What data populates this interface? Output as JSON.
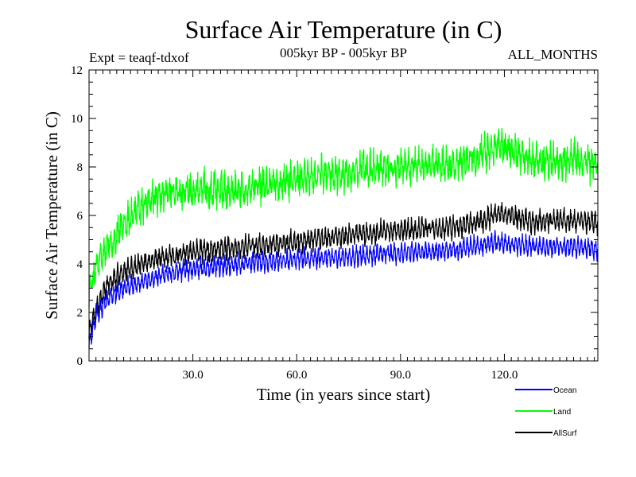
{
  "chart_data": {
    "type": "line",
    "title": "Surface Air Temperature (in C)",
    "subtitle": "005kyr BP - 005kyr BP",
    "experiment": "Expt = teaqf-tdxof",
    "period": "ALL_MONTHS",
    "xlabel": "Time (in years since start)",
    "ylabel": "Surface Air Temperature (in C)",
    "xlim": [
      0,
      147
    ],
    "ylim": [
      0,
      12
    ],
    "x_ticks": [
      30,
      60,
      90,
      120
    ],
    "x_tick_labels": [
      "30.0",
      "60.0",
      "90.0",
      "120.0"
    ],
    "y_ticks": [
      0,
      2,
      4,
      6,
      8,
      10,
      12
    ],
    "y_tick_labels": [
      "0",
      "2",
      "4",
      "6",
      "8",
      "10",
      "12"
    ],
    "x_step": 0.0833,
    "series": [
      {
        "name": "Ocean",
        "color": "#0000ff",
        "trend": [
          [
            0,
            0.6
          ],
          [
            2,
            1.8
          ],
          [
            5,
            2.5
          ],
          [
            10,
            3.0
          ],
          [
            20,
            3.5
          ],
          [
            30,
            3.8
          ],
          [
            45,
            4.0
          ],
          [
            60,
            4.2
          ],
          [
            75,
            4.3
          ],
          [
            90,
            4.45
          ],
          [
            105,
            4.55
          ],
          [
            115,
            4.8
          ],
          [
            118,
            4.9
          ],
          [
            130,
            4.7
          ],
          [
            140,
            4.7
          ],
          [
            147,
            4.6
          ]
        ],
        "seasonal_amplitude": 0.28,
        "noise_amplitude": 0.17,
        "x_range": [
          0,
          147
        ]
      },
      {
        "name": "Land",
        "color": "#00ff00",
        "trend": [
          [
            0,
            2.8
          ],
          [
            2,
            3.8
          ],
          [
            5,
            4.6
          ],
          [
            10,
            5.6
          ],
          [
            15,
            6.4
          ],
          [
            20,
            6.8
          ],
          [
            30,
            7.0
          ],
          [
            45,
            7.1
          ],
          [
            60,
            7.5
          ],
          [
            75,
            7.8
          ],
          [
            90,
            8.0
          ],
          [
            105,
            8.1
          ],
          [
            115,
            8.6
          ],
          [
            118,
            8.9
          ],
          [
            130,
            8.2
          ],
          [
            140,
            8.3
          ],
          [
            147,
            8.1
          ]
        ],
        "seasonal_amplitude": 0.38,
        "noise_amplitude": 0.42,
        "x_range": [
          0,
          147
        ]
      },
      {
        "name": "AllSurf",
        "color": "#000000",
        "trend": [
          [
            0,
            1.1
          ],
          [
            2,
            2.2
          ],
          [
            5,
            3.1
          ],
          [
            10,
            3.7
          ],
          [
            20,
            4.2
          ],
          [
            30,
            4.5
          ],
          [
            45,
            4.7
          ],
          [
            60,
            4.9
          ],
          [
            75,
            5.2
          ],
          [
            90,
            5.4
          ],
          [
            105,
            5.5
          ],
          [
            115,
            5.8
          ],
          [
            118,
            6.1
          ],
          [
            130,
            5.7
          ],
          [
            140,
            5.8
          ],
          [
            147,
            5.7
          ]
        ],
        "seasonal_amplitude": 0.3,
        "noise_amplitude": 0.2,
        "x_range": [
          0,
          147
        ]
      }
    ],
    "legend_position": "bottom-right"
  }
}
